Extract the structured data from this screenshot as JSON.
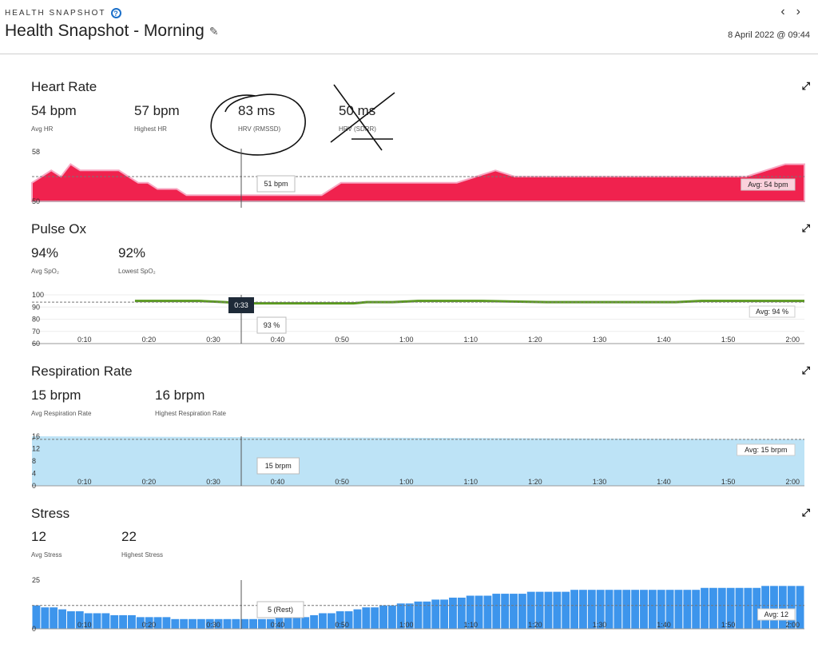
{
  "header": {
    "kicker": "HEALTH SNAPSHOT",
    "help_icon": "?",
    "title": "Health Snapshot - Morning",
    "edit_icon": "pencil-icon",
    "prev_icon": "‹",
    "next_icon": "›",
    "date": "8 April 2022 @ 09:44"
  },
  "sections": {
    "heart_rate": {
      "title": "Heart Rate",
      "stats": [
        {
          "value": "54 bpm",
          "label": "Avg HR"
        },
        {
          "value": "57 bpm",
          "label": "Highest HR"
        },
        {
          "value": "83 ms",
          "label": "HRV (RMSSD)"
        },
        {
          "value": "50 ms",
          "label": "HRV (SDRR)"
        }
      ],
      "tooltip": "51 bpm",
      "avg_label": "Avg: 54 bpm"
    },
    "pulse_ox": {
      "title": "Pulse Ox",
      "stats": [
        {
          "value": "94%",
          "label": "Avg SpO₂"
        },
        {
          "value": "92%",
          "label": "Lowest SpO₂"
        }
      ],
      "cursor_time": "0:33",
      "tooltip": "93 %",
      "avg_label": "Avg: 94 %"
    },
    "respiration": {
      "title": "Respiration Rate",
      "stats": [
        {
          "value": "15 brpm",
          "label": "Avg Respiration Rate"
        },
        {
          "value": "16 brpm",
          "label": "Highest Respiration Rate"
        }
      ],
      "tooltip": "15 brpm",
      "avg_label": "Avg: 15 brpm"
    },
    "stress": {
      "title": "Stress",
      "stats": [
        {
          "value": "12",
          "label": "Avg Stress"
        },
        {
          "value": "22",
          "label": "Highest Stress"
        }
      ],
      "tooltip": "5 (Rest)",
      "avg_label": "Avg: 12"
    }
  },
  "colors": {
    "heart": "#f0224e",
    "pulse": "#5a9a1e",
    "resp": "#bde3f6",
    "stress": "#3d95ec",
    "dark_badge": "#1e2a38"
  },
  "chart_data": [
    {
      "type": "area",
      "name": "heart_rate",
      "ylim": [
        50,
        58
      ],
      "yticks": [
        50,
        58
      ],
      "avg": 54,
      "cursor_x": 0.55,
      "x": [
        0,
        0.05,
        0.1,
        0.15,
        0.2,
        0.25,
        0.3,
        0.35,
        0.4,
        0.45,
        0.5,
        0.55,
        0.6,
        0.65,
        0.7,
        0.75,
        0.8,
        0.85,
        0.9,
        0.95,
        1.0,
        1.1,
        1.2,
        1.3,
        1.4,
        1.5,
        1.6,
        1.7,
        1.8,
        1.9,
        2.0,
        2.05,
        2.1,
        2.2,
        2.3,
        2.4,
        2.5,
        2.6,
        2.7,
        2.8,
        2.9,
        3.0,
        3.1,
        3.2,
        3.3,
        3.4,
        3.5,
        3.6,
        3.7,
        3.8,
        3.9,
        4.0
      ],
      "values": [
        53,
        54,
        55,
        54,
        56,
        55,
        55,
        55,
        55,
        55,
        54,
        53,
        53,
        52,
        52,
        52,
        51,
        51,
        51,
        51,
        51,
        51,
        51,
        51,
        51,
        51,
        53,
        53,
        53,
        53,
        53,
        53,
        53,
        53,
        54,
        55,
        54,
        54,
        54,
        54,
        54,
        54,
        54,
        54,
        54,
        54,
        54,
        54,
        54,
        55,
        56,
        56
      ]
    },
    {
      "type": "line",
      "name": "pulse_ox",
      "ylim": [
        60,
        100
      ],
      "yticks": [
        60,
        70,
        80,
        90,
        100
      ],
      "xticks": [
        "0:10",
        "0:20",
        "0:30",
        "0:40",
        "0:50",
        "1:00",
        "1:10",
        "1:20",
        "1:30",
        "1:40",
        "1:50",
        "2:00"
      ],
      "avg": 94,
      "x": [
        16,
        20,
        26,
        30,
        33,
        40,
        50,
        52,
        56,
        60,
        70,
        80,
        90,
        100,
        104,
        110,
        120
      ],
      "values": [
        95,
        95,
        95,
        94,
        93,
        93,
        93,
        94,
        94,
        95,
        95,
        94,
        94,
        94,
        95,
        95,
        95
      ]
    },
    {
      "type": "area",
      "name": "respiration",
      "ylim": [
        0,
        16
      ],
      "yticks": [
        0,
        4,
        8,
        12,
        16
      ],
      "xticks": [
        "0:10",
        "0:20",
        "0:30",
        "0:40",
        "0:50",
        "1:00",
        "1:10",
        "1:20",
        "1:30",
        "1:40",
        "1:50",
        "2:00"
      ],
      "avg": 15,
      "x": [
        0,
        120
      ],
      "values": [
        16,
        15
      ]
    },
    {
      "type": "bar",
      "name": "stress",
      "ylim": [
        0,
        25
      ],
      "yticks": [
        0,
        25
      ],
      "xticks": [
        "0:10",
        "0:20",
        "0:30",
        "0:40",
        "0:50",
        "1:00",
        "1:10",
        "1:20",
        "1:30",
        "1:40",
        "1:50",
        "2:00"
      ],
      "avg": 12,
      "values": [
        12,
        11,
        11,
        10,
        9,
        9,
        8,
        8,
        8,
        7,
        7,
        7,
        6,
        6,
        6,
        6,
        5,
        5,
        5,
        5,
        5,
        5,
        5,
        5,
        5,
        5,
        5,
        5,
        6,
        6,
        6,
        6,
        7,
        8,
        8,
        9,
        9,
        10,
        11,
        11,
        12,
        12,
        13,
        13,
        14,
        14,
        15,
        15,
        16,
        16,
        17,
        17,
        17,
        18,
        18,
        18,
        18,
        19,
        19,
        19,
        19,
        19,
        20,
        20,
        20,
        20,
        20,
        20,
        20,
        20,
        20,
        20,
        20,
        20,
        20,
        20,
        20,
        21,
        21,
        21,
        21,
        21,
        21,
        21,
        22,
        22,
        22,
        22,
        22
      ]
    }
  ]
}
